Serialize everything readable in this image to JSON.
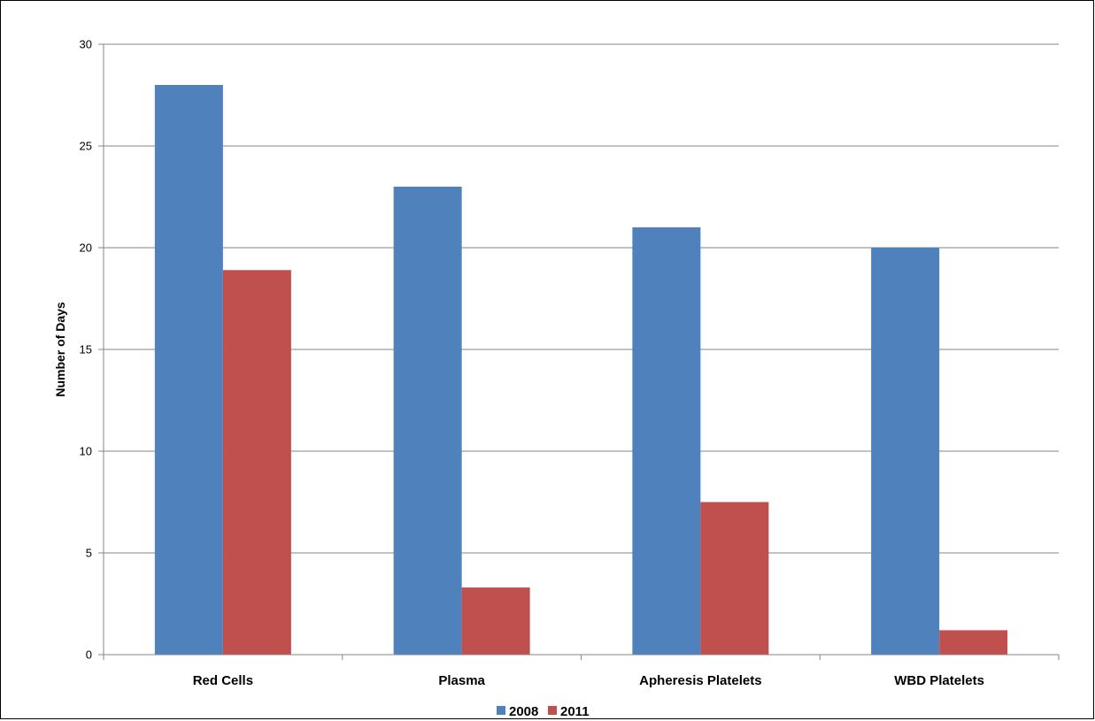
{
  "chart_data": {
    "type": "bar",
    "categories": [
      "Red Cells",
      "Plasma",
      "Apheresis Platelets",
      "WBD Platelets"
    ],
    "series": [
      {
        "name": "2008",
        "color": "#4f81bd",
        "values": [
          28,
          23,
          21,
          20
        ]
      },
      {
        "name": "2011",
        "color": "#c0504d",
        "values": [
          18.9,
          3.3,
          7.5,
          1.2
        ]
      }
    ],
    "ylabel": "Number of Days",
    "ylim": [
      0,
      30
    ],
    "yticks": [
      0,
      5,
      10,
      15,
      20,
      25,
      30
    ],
    "grid": true,
    "legend_position": "bottom"
  }
}
